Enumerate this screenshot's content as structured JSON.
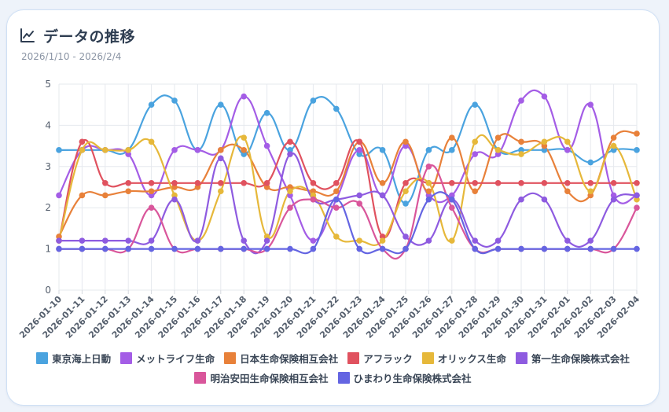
{
  "header": {
    "title": "データの推移",
    "date_range": "2026/1/10 - 2026/2/4",
    "icon": "line-chart-icon"
  },
  "chart_data": {
    "type": "line",
    "title": "データの推移",
    "subtitle": "2026/1/10 - 2026/2/4",
    "xlabel": "",
    "ylabel": "",
    "ylim": [
      0,
      5
    ],
    "yticks": [
      "0",
      "1",
      "2",
      "3",
      "4",
      "5"
    ],
    "grid": true,
    "legend_position": "bottom",
    "categories": [
      "2026-01-10",
      "2026-01-11",
      "2026-01-12",
      "2026-01-13",
      "2026-01-14",
      "2026-01-15",
      "2026-01-16",
      "2026-01-17",
      "2026-01-18",
      "2026-01-19",
      "2026-01-20",
      "2026-01-21",
      "2026-01-22",
      "2026-01-23",
      "2026-01-24",
      "2026-01-25",
      "2026-01-26",
      "2026-01-27",
      "2026-01-28",
      "2026-01-29",
      "2026-01-30",
      "2026-01-31",
      "2026-02-01",
      "2026-02-02",
      "2026-02-03",
      "2026-02-04"
    ],
    "series": [
      {
        "name": "東京海上日動",
        "color": "#4aa3df",
        "values": [
          3.4,
          3.4,
          3.4,
          3.4,
          4.5,
          4.6,
          3.4,
          4.5,
          3.3,
          4.3,
          3.4,
          4.6,
          4.4,
          3.3,
          3.4,
          2.1,
          3.4,
          3.4,
          4.5,
          3.4,
          3.4,
          3.4,
          3.4,
          3.1,
          3.4,
          3.4
        ]
      },
      {
        "name": "メットライフ生命",
        "color": "#a45de6",
        "values": [
          2.3,
          3.4,
          3.4,
          3.3,
          2.3,
          3.4,
          3.4,
          3.4,
          4.7,
          3.5,
          2.3,
          1.2,
          2.2,
          3.4,
          2.3,
          3.5,
          2.3,
          2.3,
          3.3,
          3.3,
          4.6,
          4.7,
          3.4,
          4.5,
          2.3,
          2.3
        ]
      },
      {
        "name": "日本生命保険相互会社",
        "color": "#e8813a",
        "values": [
          1.3,
          2.3,
          2.3,
          2.4,
          2.4,
          2.5,
          2.5,
          3.4,
          3.4,
          2.5,
          2.5,
          2.4,
          2.4,
          3.6,
          2.6,
          3.6,
          2.4,
          3.7,
          2.4,
          3.7,
          3.6,
          3.5,
          2.4,
          2.3,
          3.7,
          3.8
        ]
      },
      {
        "name": "アフラック",
        "color": "#e0525f",
        "values": [
          1.2,
          3.6,
          2.6,
          2.6,
          2.6,
          2.6,
          2.6,
          2.6,
          2.6,
          2.6,
          3.6,
          2.6,
          2.6,
          3.6,
          1.3,
          2.6,
          2.6,
          2.6,
          2.6,
          2.6,
          2.6,
          2.6,
          2.6,
          2.6,
          2.6,
          2.6
        ]
      },
      {
        "name": "オリックス生命",
        "color": "#e6b83a",
        "values": [
          1.2,
          3.4,
          3.4,
          3.4,
          3.6,
          2.3,
          1.2,
          2.4,
          3.7,
          1.3,
          2.4,
          2.3,
          1.3,
          1.2,
          1.2,
          2.4,
          2.6,
          1.2,
          3.6,
          3.4,
          3.3,
          3.6,
          3.6,
          2.4,
          3.5,
          2.2
        ]
      },
      {
        "name": "第一生命保険株式会社",
        "color": "#8e5be0",
        "values": [
          1.2,
          1.2,
          1.2,
          1.2,
          1.2,
          2.2,
          1.2,
          3.2,
          1.2,
          1.2,
          3.3,
          2.2,
          2.2,
          2.3,
          2.3,
          1.3,
          1.2,
          2.2,
          1.2,
          1.2,
          2.2,
          2.2,
          1.2,
          1.2,
          2.2,
          2.3
        ]
      },
      {
        "name": "明治安田生命保険相互会社",
        "color": "#d9569b",
        "values": [
          1.0,
          1.0,
          1.0,
          1.0,
          2.0,
          1.0,
          1.0,
          1.0,
          1.0,
          1.0,
          2.0,
          2.2,
          2.0,
          2.1,
          1.0,
          1.0,
          3.0,
          2.0,
          1.0,
          1.0,
          1.0,
          1.0,
          1.0,
          1.0,
          1.0,
          2.0
        ]
      },
      {
        "name": "ひまわり生命保険株式会社",
        "color": "#6465e2",
        "values": [
          1.0,
          1.0,
          1.0,
          1.0,
          1.0,
          1.0,
          1.0,
          1.0,
          1.0,
          1.0,
          1.0,
          1.0,
          2.2,
          1.0,
          1.0,
          1.0,
          2.2,
          2.2,
          1.0,
          1.0,
          1.0,
          1.0,
          1.0,
          1.0,
          1.0,
          1.0
        ]
      }
    ]
  }
}
